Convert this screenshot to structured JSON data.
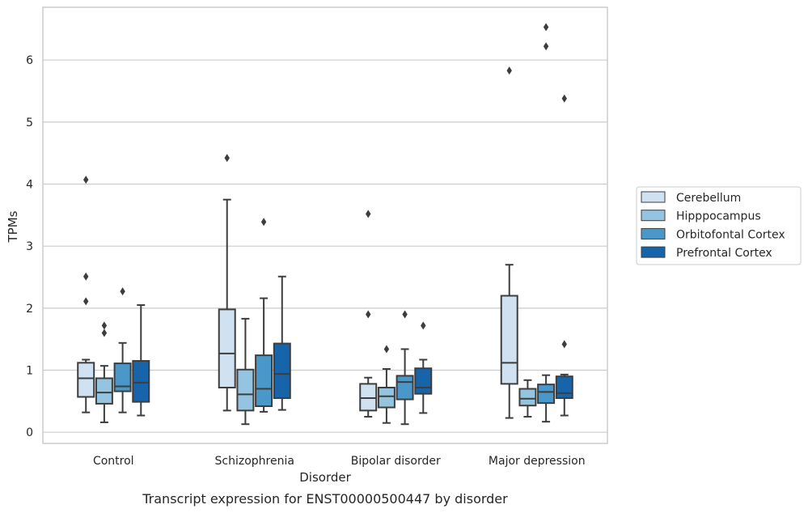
{
  "chart_data": {
    "type": "boxplot",
    "caption": "Transcript expression for ENST00000500447 by disorder",
    "xlabel": "Disorder",
    "ylabel": "TPMs",
    "ylim": [
      -0.18,
      6.85
    ],
    "yticks": [
      0,
      1,
      2,
      3,
      4,
      5,
      6
    ],
    "grid": true,
    "legend_position": "right",
    "categories": [
      "Control",
      "Schizophrenia",
      "Bipolar disorder",
      "Major depression"
    ],
    "series": [
      {
        "name": "Cerebellum",
        "color": "#d0e1f2",
        "boxes": [
          {
            "whislo": 0.32,
            "q1": 0.57,
            "med": 0.87,
            "q3": 1.12,
            "whishi": 1.17,
            "fliers": [
              4.07,
              2.51,
              2.11
            ]
          },
          {
            "whislo": 0.35,
            "q1": 0.72,
            "med": 1.27,
            "q3": 1.98,
            "whishi": 3.75,
            "fliers": [
              4.42
            ]
          },
          {
            "whislo": 0.25,
            "q1": 0.35,
            "med": 0.55,
            "q3": 0.78,
            "whishi": 0.88,
            "fliers": [
              3.52,
              1.9
            ]
          },
          {
            "whislo": 0.23,
            "q1": 0.78,
            "med": 1.12,
            "q3": 2.2,
            "whishi": 2.7,
            "fliers": [
              5.83
            ]
          }
        ]
      },
      {
        "name": "Hipppocampus",
        "color": "#94c4df",
        "boxes": [
          {
            "whislo": 0.16,
            "q1": 0.46,
            "med": 0.64,
            "q3": 0.87,
            "whishi": 1.07,
            "fliers": [
              1.72,
              1.6
            ]
          },
          {
            "whislo": 0.13,
            "q1": 0.35,
            "med": 0.61,
            "q3": 1.01,
            "whishi": 1.83,
            "fliers": []
          },
          {
            "whislo": 0.15,
            "q1": 0.4,
            "med": 0.58,
            "q3": 0.72,
            "whishi": 1.02,
            "fliers": [
              1.34
            ]
          },
          {
            "whislo": 0.25,
            "q1": 0.43,
            "med": 0.54,
            "q3": 0.7,
            "whishi": 0.84,
            "fliers": []
          }
        ]
      },
      {
        "name": "Orbitofontal Cortex",
        "color": "#4a98c9",
        "boxes": [
          {
            "whislo": 0.32,
            "q1": 0.66,
            "med": 0.74,
            "q3": 1.11,
            "whishi": 1.44,
            "fliers": [
              2.27
            ]
          },
          {
            "whislo": 0.33,
            "q1": 0.42,
            "med": 0.7,
            "q3": 1.24,
            "whishi": 2.16,
            "fliers": [
              3.39
            ]
          },
          {
            "whislo": 0.13,
            "q1": 0.53,
            "med": 0.81,
            "q3": 0.91,
            "whishi": 1.34,
            "fliers": [
              1.9
            ]
          },
          {
            "whislo": 0.17,
            "q1": 0.47,
            "med": 0.65,
            "q3": 0.77,
            "whishi": 0.92,
            "fliers": [
              6.53,
              6.22
            ]
          }
        ]
      },
      {
        "name": "Prefrontal Cortex",
        "color": "#1764ab",
        "boxes": [
          {
            "whislo": 0.27,
            "q1": 0.49,
            "med": 0.8,
            "q3": 1.15,
            "whishi": 2.05,
            "fliers": []
          },
          {
            "whislo": 0.36,
            "q1": 0.55,
            "med": 0.94,
            "q3": 1.43,
            "whishi": 2.51,
            "fliers": []
          },
          {
            "whislo": 0.31,
            "q1": 0.62,
            "med": 0.72,
            "q3": 1.03,
            "whishi": 1.17,
            "fliers": [
              1.72
            ]
          },
          {
            "whislo": 0.27,
            "q1": 0.55,
            "med": 0.63,
            "q3": 0.9,
            "whishi": 0.93,
            "fliers": [
              5.38,
              1.42
            ]
          }
        ]
      }
    ]
  }
}
